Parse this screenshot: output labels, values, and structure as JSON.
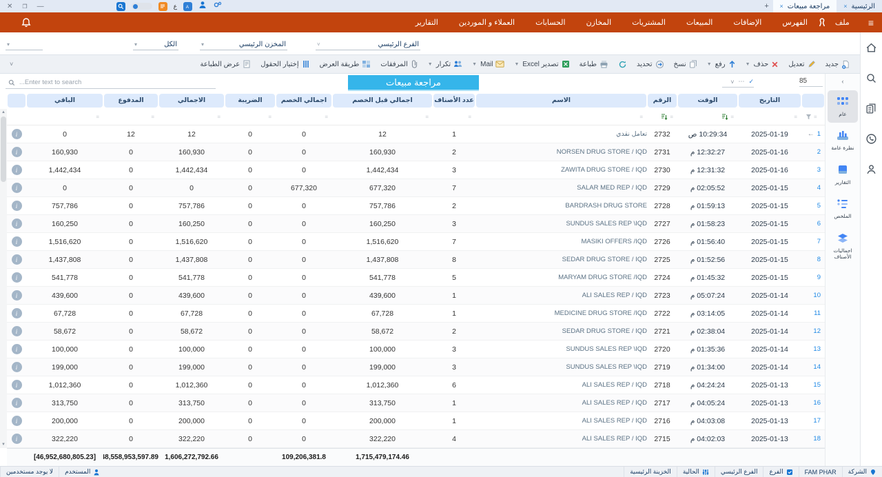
{
  "window": {
    "tabs": [
      {
        "label": "الرئيسية",
        "close": "×"
      },
      {
        "label": "مراجعة مبيعات",
        "close": "×",
        "active": true
      }
    ],
    "new_tab": "+",
    "controls": {
      "close": "✕",
      "restore": "❐",
      "minimize": "—"
    },
    "ayn": "ع"
  },
  "menu": {
    "items": [
      "ملف",
      "الفهرس",
      "الإضافات",
      "المبيعات",
      "المشتريات",
      "المخازن",
      "الحسابات",
      "العملاء و الموردين",
      "التقارير"
    ]
  },
  "filters": [
    {
      "label": "الفرع الرئيسي"
    },
    {
      "label": "المخزن الرئيسي"
    },
    {
      "label": "الكل"
    },
    {
      "label": ""
    }
  ],
  "toolbar": {
    "buttons": [
      {
        "label": "جديد",
        "icon": "new",
        "dd": false
      },
      {
        "label": "تعديل",
        "icon": "edit",
        "dd": false
      },
      {
        "label": "حذف",
        "icon": "delete",
        "dd": true
      },
      {
        "label": "رفع",
        "icon": "upload",
        "dd": true
      },
      {
        "label": "نسخ",
        "icon": "copy",
        "dd": false
      },
      {
        "label": "تحديد",
        "icon": "select",
        "dd": false
      },
      {
        "label": "",
        "icon": "refresh",
        "dd": false
      },
      {
        "label": "طباعة",
        "icon": "print",
        "dd": false
      },
      {
        "label": "تصدير Excel",
        "icon": "excel",
        "dd": true
      },
      {
        "label": "Mail",
        "icon": "mail",
        "dd": true
      },
      {
        "label": "تكرار",
        "icon": "repeat",
        "dd": true
      },
      {
        "label": "المرفقات",
        "icon": "attach",
        "dd": false
      },
      {
        "label": "طريقة العرض",
        "icon": "viewmode",
        "dd": false
      },
      {
        "label": "إختيار الحقول",
        "icon": "fields",
        "dd": false
      },
      {
        "label": "عرض الطباعة",
        "icon": "printpreview",
        "dd": false
      }
    ],
    "collapse": "˅"
  },
  "search": {
    "placeholder": "...Enter text to search",
    "count": "85",
    "mru": [
      "✓",
      "⋯",
      "˅"
    ]
  },
  "page_title": "مراجعة مبيعات",
  "table": {
    "columns": {
      "rownum": "",
      "date": "التاريخ",
      "time": "الوقت",
      "num": "الرقم",
      "name": "الاسم",
      "items": "عدد الأصناف",
      "before": "اجمالي قبل الخصم",
      "disc": "اجمالي الخصم",
      "tax": "الضريبة",
      "total": "الاجمالي",
      "paid": "المدفوع",
      "rem": "الباقي",
      "info": ""
    },
    "filter_operator": "=",
    "sorted_columns": [
      "time",
      "num"
    ],
    "rows": [
      {
        "n": "1",
        "current": true,
        "date": "2025-01-19",
        "time": "10:29:34 ص",
        "num": "2732",
        "name": "تعامل نقدي",
        "arabic_name": true,
        "items": "1",
        "before": "12",
        "disc": "0",
        "tax": "0",
        "total": "12",
        "paid": "12",
        "rem": "0"
      },
      {
        "n": "2",
        "date": "2025-01-16",
        "time": "12:32:27 م",
        "num": "2731",
        "name": "NORSEN DRUG STORE / IQD",
        "items": "2",
        "before": "160,930",
        "disc": "0",
        "tax": "0",
        "total": "160,930",
        "paid": "0",
        "rem": "160,930"
      },
      {
        "n": "3",
        "date": "2025-01-16",
        "time": "12:31:32 م",
        "num": "2730",
        "name": "ZAWITA DRUG STORE / IQD",
        "items": "3",
        "before": "1,442,434",
        "disc": "0",
        "tax": "0",
        "total": "1,442,434",
        "paid": "0",
        "rem": "1,442,434"
      },
      {
        "n": "4",
        "date": "2025-01-15",
        "time": "02:05:52 م",
        "num": "2729",
        "name": "SALAR MED REP / IQD",
        "items": "7",
        "before": "677,320",
        "disc": "677,320",
        "tax": "0",
        "total": "0",
        "paid": "0",
        "rem": "0"
      },
      {
        "n": "5",
        "date": "2025-01-15",
        "time": "01:59:13 م",
        "num": "2728",
        "name": "BARDRASH DRUG STORE",
        "items": "2",
        "before": "757,786",
        "disc": "0",
        "tax": "0",
        "total": "757,786",
        "paid": "0",
        "rem": "757,786"
      },
      {
        "n": "6",
        "date": "2025-01-15",
        "time": "01:58:23 م",
        "num": "2727",
        "name": "SUNDUS SALES REP \\IQD",
        "items": "3",
        "before": "160,250",
        "disc": "0",
        "tax": "0",
        "total": "160,250",
        "paid": "0",
        "rem": "160,250"
      },
      {
        "n": "7",
        "date": "2025-01-15",
        "time": "01:56:40 م",
        "num": "2726",
        "name": "MASIKI OFFERS /IQD",
        "items": "7",
        "before": "1,516,620",
        "disc": "0",
        "tax": "0",
        "total": "1,516,620",
        "paid": "0",
        "rem": "1,516,620"
      },
      {
        "n": "8",
        "date": "2025-01-15",
        "time": "01:52:56 م",
        "num": "2725",
        "name": "SEDAR DRUG STORE / IQD",
        "items": "8",
        "before": "1,437,808",
        "disc": "0",
        "tax": "0",
        "total": "1,437,808",
        "paid": "0",
        "rem": "1,437,808"
      },
      {
        "n": "9",
        "date": "2025-01-15",
        "time": "01:45:32 م",
        "num": "2724",
        "name": "MARYAM DRUG STORE /IQD",
        "items": "5",
        "before": "541,778",
        "disc": "0",
        "tax": "0",
        "total": "541,778",
        "paid": "0",
        "rem": "541,778"
      },
      {
        "n": "10",
        "date": "2025-01-14",
        "time": "05:07:24 م",
        "num": "2723",
        "name": "ALI SALES REP / IQD",
        "items": "1",
        "before": "439,600",
        "disc": "0",
        "tax": "0",
        "total": "439,600",
        "paid": "0",
        "rem": "439,600"
      },
      {
        "n": "11",
        "date": "2025-01-14",
        "time": "03:14:05 م",
        "num": "2722",
        "name": "MEDICINE DRUG STORE /IQD",
        "items": "1",
        "before": "67,728",
        "disc": "0",
        "tax": "0",
        "total": "67,728",
        "paid": "0",
        "rem": "67,728"
      },
      {
        "n": "12",
        "date": "2025-01-14",
        "time": "02:38:04 م",
        "num": "2721",
        "name": "SEDAR DRUG STORE / IQD",
        "items": "2",
        "before": "58,672",
        "disc": "0",
        "tax": "0",
        "total": "58,672",
        "paid": "0",
        "rem": "58,672"
      },
      {
        "n": "13",
        "date": "2025-01-14",
        "time": "01:35:36 م",
        "num": "2720",
        "name": "SUNDUS SALES REP \\IQD",
        "items": "3",
        "before": "100,000",
        "disc": "0",
        "tax": "0",
        "total": "100,000",
        "paid": "0",
        "rem": "100,000"
      },
      {
        "n": "14",
        "date": "2025-01-14",
        "time": "01:34:00 م",
        "num": "2719",
        "name": "SUNDUS SALES REP \\IQD",
        "items": "3",
        "before": "199,000",
        "disc": "0",
        "tax": "0",
        "total": "199,000",
        "paid": "0",
        "rem": "199,000"
      },
      {
        "n": "15",
        "date": "2025-01-13",
        "time": "04:24:24 م",
        "num": "2718",
        "name": "ALI SALES REP / IQD",
        "items": "6",
        "before": "1,012,360",
        "disc": "0",
        "tax": "0",
        "total": "1,012,360",
        "paid": "0",
        "rem": "1,012,360"
      },
      {
        "n": "16",
        "date": "2025-01-13",
        "time": "04:05:24 م",
        "num": "2717",
        "name": "ALI SALES REP / IQD",
        "items": "1",
        "before": "313,750",
        "disc": "0",
        "tax": "0",
        "total": "313,750",
        "paid": "0",
        "rem": "313,750"
      },
      {
        "n": "17",
        "date": "2025-01-13",
        "time": "04:03:08 م",
        "num": "2716",
        "name": "ALI SALES REP / IQD",
        "items": "1",
        "before": "200,000",
        "disc": "0",
        "tax": "0",
        "total": "200,000",
        "paid": "0",
        "rem": "200,000"
      },
      {
        "n": "18",
        "date": "2025-01-13",
        "time": "04:02:03 م",
        "num": "2715",
        "name": "ALI SALES REP / IQD",
        "items": "4",
        "before": "322,220",
        "disc": "0",
        "tax": "0",
        "total": "322,220",
        "paid": "0",
        "rem": "322,220"
      }
    ],
    "footer": {
      "before": "1,715,479,174.46",
      "disc": "109,206,381.8",
      "tax": "",
      "total": "1,606,272,792.66",
      "paid": "48,558,953,597.89",
      "rem": "[46,952,680,805.23]"
    }
  },
  "sidepanel": {
    "collapse": "›",
    "items": [
      {
        "label": "عام",
        "icon": "grid",
        "active": true
      },
      {
        "label": "نظرة عامة",
        "icon": "chart"
      },
      {
        "label": "التقارير",
        "icon": "reports"
      },
      {
        "label": "الملخص",
        "icon": "summary"
      },
      {
        "label": "اجماليات الأصناف",
        "icon": "layers"
      }
    ]
  },
  "statusbar": {
    "left": [
      {
        "label": "المستخدم",
        "icon": "user"
      },
      {
        "label": "لا يوجد مستخدمين"
      }
    ],
    "right": [
      {
        "label": "الشركة",
        "icon": "pin"
      },
      {
        "label": "FAM PHAR"
      },
      {
        "label": "الفرع",
        "icon": "check"
      },
      {
        "label": "الفرع الرئيسي"
      },
      {
        "label": "الحالية",
        "icon": "sliders"
      },
      {
        "label": "الخزينة الرئيسية"
      }
    ]
  },
  "colors": {
    "accent_orange": "#c2440d",
    "title_cyan": "#35b5ea",
    "header_chip": "#ddeafc",
    "row_number_blue": "#1e88e5"
  }
}
